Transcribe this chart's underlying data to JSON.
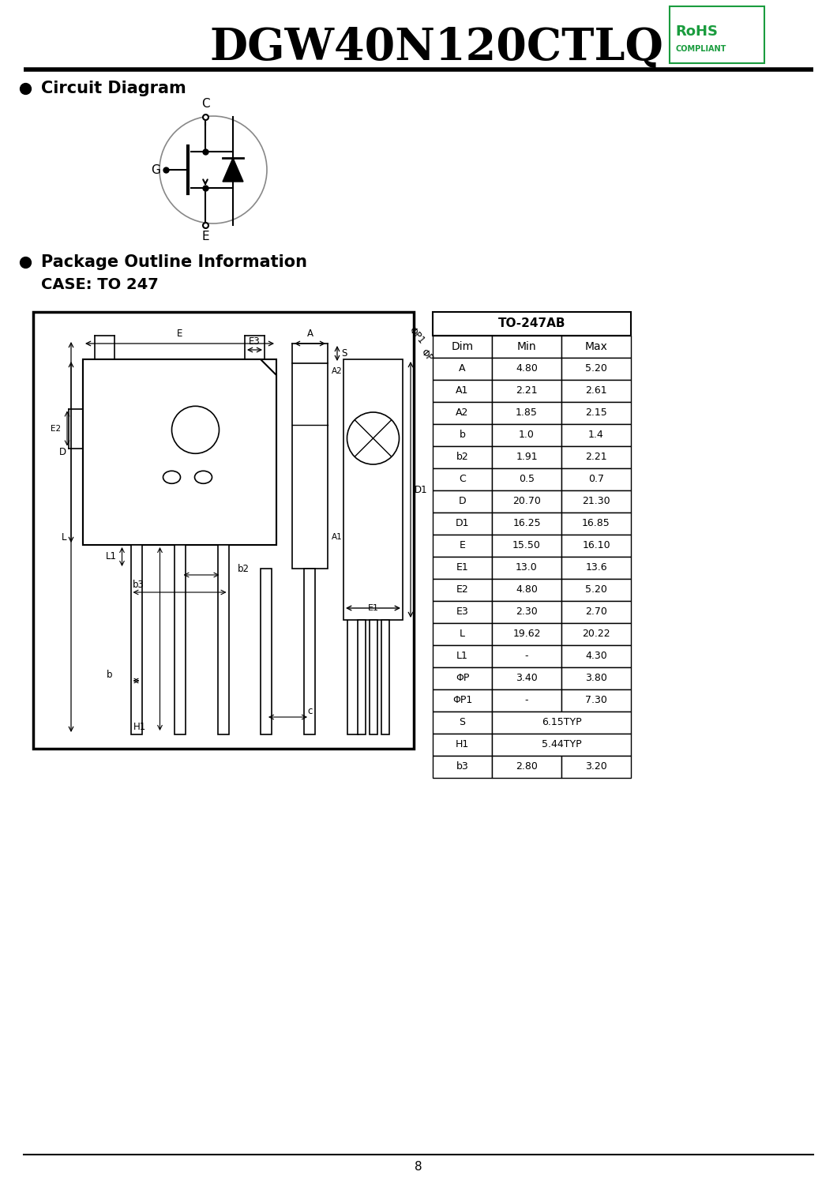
{
  "title": "DGW40N120CTLQ",
  "section1_title": "Circuit Diagram",
  "section2_title": "Package Outline Information",
  "case_title": "CASE: TO 247",
  "table_header": "TO-247AB",
  "table_cols": [
    "Dim",
    "Min",
    "Max"
  ],
  "table_rows": [
    [
      "A",
      "4.80",
      "5.20"
    ],
    [
      "A1",
      "2.21",
      "2.61"
    ],
    [
      "A2",
      "1.85",
      "2.15"
    ],
    [
      "b",
      "1.0",
      "1.4"
    ],
    [
      "b2",
      "1.91",
      "2.21"
    ],
    [
      "C",
      "0.5",
      "0.7"
    ],
    [
      "D",
      "20.70",
      "21.30"
    ],
    [
      "D1",
      "16.25",
      "16.85"
    ],
    [
      "E",
      "15.50",
      "16.10"
    ],
    [
      "E1",
      "13.0",
      "13.6"
    ],
    [
      "E2",
      "4.80",
      "5.20"
    ],
    [
      "E3",
      "2.30",
      "2.70"
    ],
    [
      "L",
      "19.62",
      "20.22"
    ],
    [
      "L1",
      "-",
      "4.30"
    ],
    [
      "ΦP",
      "3.40",
      "3.80"
    ],
    [
      "ΦP1",
      "-",
      "7.30"
    ],
    [
      "S",
      "6.15TYP",
      ""
    ],
    [
      "H1",
      "5.44TYP",
      ""
    ],
    [
      "b3",
      "2.80",
      "3.20"
    ]
  ],
  "page_number": "8",
  "bg_color": "#ffffff",
  "title_color": "#000000",
  "rohs_color": "#1a9c3e"
}
